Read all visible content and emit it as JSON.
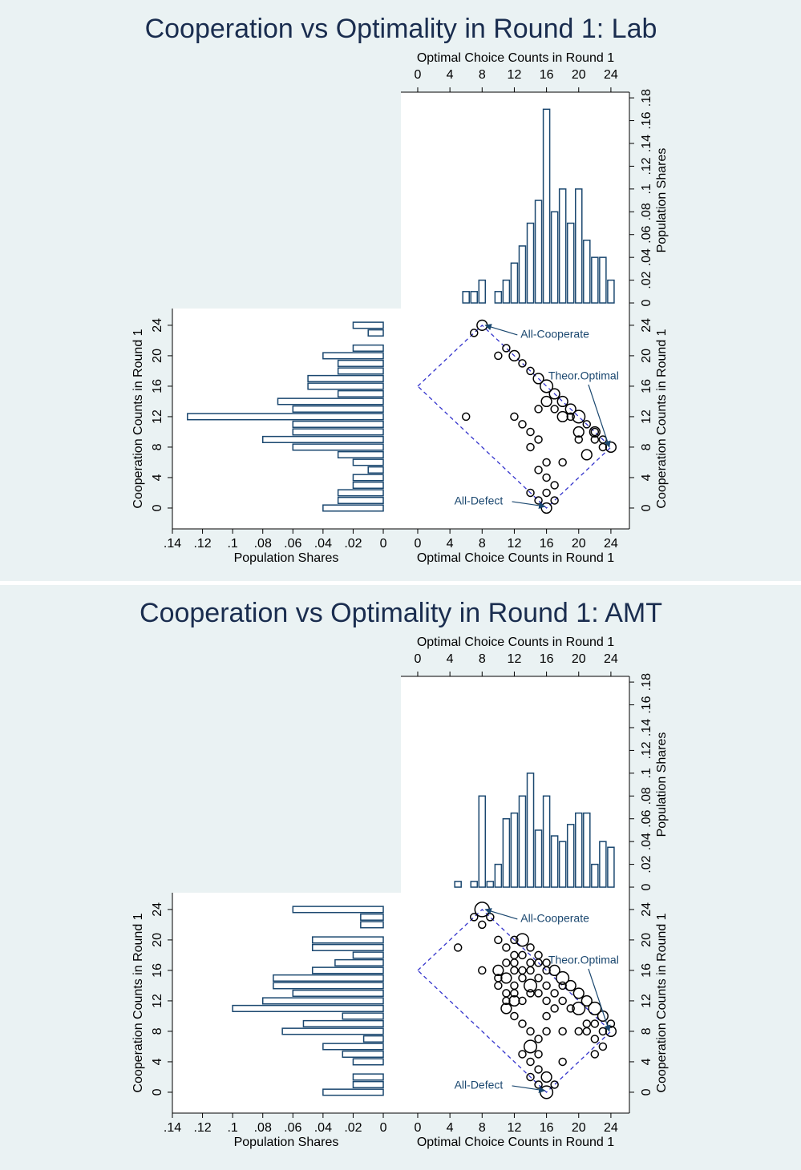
{
  "chart_data": [
    {
      "type": "marginal",
      "title": "Cooperation vs Optimality in Round 1: Lab",
      "xlabel": "Optimal Choice Counts in Round 1",
      "ylabel": "Cooperation Counts in Round 1",
      "share_label": "Population Shares",
      "xlim": [
        -2.09,
        26.3
      ],
      "xticks": [
        0,
        4,
        8,
        12,
        16,
        20,
        24
      ],
      "ylim": [
        -2.74,
        26.2
      ],
      "yticks": [
        0,
        4,
        8,
        12,
        16,
        20,
        24
      ],
      "top_histogram": {
        "color": "#1a476f",
        "x": [
          6,
          7,
          8,
          10,
          11,
          12,
          13,
          14,
          15,
          16,
          17,
          18,
          19,
          20,
          21,
          22,
          23,
          24
        ],
        "values": [
          0.01,
          0.01,
          0.02,
          0.01,
          0.02,
          0.035,
          0.05,
          0.07,
          0.09,
          0.17,
          0.08,
          0.1,
          0.07,
          0.1,
          0.055,
          0.04,
          0.04,
          0.02
        ],
        "ylim": [
          -0.0049,
          0.185
        ],
        "yticks": [
          0,
          {
            "value": 0.02,
            "label": ".02"
          },
          {
            "value": 0.04,
            "label": ".04"
          },
          {
            "value": 0.06,
            "label": ".06"
          },
          {
            "value": 0.08,
            "label": ".08"
          },
          {
            "value": 0.1,
            "label": ".1"
          },
          {
            "value": 0.12,
            "label": ".12"
          },
          {
            "value": 0.14,
            "label": ".14"
          },
          {
            "value": 0.16,
            "label": ".16"
          },
          {
            "value": 0.18,
            "label": ".18"
          }
        ]
      },
      "left_histogram": {
        "color": "#1a476f",
        "y": [
          24,
          23,
          21,
          20,
          19,
          18,
          17,
          16,
          15,
          14,
          13,
          12,
          11,
          10,
          9,
          8,
          7,
          6,
          5,
          4,
          3,
          2,
          1,
          0
        ],
        "values": [
          0.02,
          0.01,
          0.02,
          0.04,
          0.03,
          0.03,
          0.05,
          0.05,
          0.03,
          0.07,
          0.06,
          0.13,
          0.06,
          0.06,
          0.08,
          0.06,
          0.03,
          0.02,
          0.01,
          0.02,
          0.02,
          0.03,
          0.03,
          0.04
        ],
        "xlim": [
          -0.0117,
          0.14
        ],
        "xticks": [
          0,
          {
            "value": 0.02,
            "label": ".02"
          },
          {
            "value": 0.04,
            "label": ".04"
          },
          {
            "value": 0.06,
            "label": ".06"
          },
          {
            "value": 0.08,
            "label": ".08"
          },
          {
            "value": 0.1,
            "label": ".1"
          },
          {
            "value": 0.12,
            "label": ".12"
          },
          {
            "value": 0.14,
            "label": ".14"
          }
        ]
      },
      "scatter": {
        "color": "#000000",
        "x": [
          8,
          7,
          10,
          11,
          12,
          13,
          14,
          15,
          16,
          17,
          18,
          19,
          20,
          21,
          22,
          23,
          24,
          16,
          15,
          17,
          18,
          19,
          12,
          6,
          13,
          14,
          15,
          14,
          20,
          21,
          22,
          23,
          18,
          16,
          15,
          16,
          17,
          14,
          16,
          15,
          16,
          17,
          20,
          22
        ],
        "y": [
          24,
          23,
          20,
          21,
          20,
          19,
          18,
          17,
          16,
          15,
          14,
          13,
          12,
          11,
          10,
          9,
          8,
          14,
          13,
          13,
          12,
          12,
          12,
          12,
          11,
          10,
          9,
          8,
          9,
          7,
          9,
          8,
          6,
          6,
          5,
          4,
          3,
          2,
          2,
          1,
          0,
          1,
          10,
          10
        ],
        "size": [
          2,
          1,
          1,
          1,
          2,
          1,
          1,
          2,
          3,
          2,
          2,
          2,
          3,
          1,
          2,
          1,
          2,
          2,
          1,
          1,
          2,
          1,
          1,
          1,
          1,
          1,
          1,
          1,
          1,
          2,
          1,
          1,
          1,
          1,
          1,
          1,
          1,
          1,
          1,
          1,
          2,
          1,
          2,
          1
        ]
      },
      "frontier": {
        "color": "#3333cc",
        "x": [
          0,
          8,
          24,
          16,
          0
        ],
        "y": [
          16,
          24,
          8,
          0,
          16
        ]
      },
      "annotations": [
        {
          "text": "All-Cooperate",
          "x": 8,
          "y": 24
        },
        {
          "text": "Theor.Optimal",
          "x": 24,
          "y": 8
        },
        {
          "text": "All-Defect",
          "x": 16,
          "y": 0
        }
      ]
    },
    {
      "type": "marginal",
      "title": "Cooperation vs Optimality in Round 1: AMT",
      "xlabel": "Optimal Choice Counts in Round 1",
      "ylabel": "Cooperation Counts in Round 1",
      "share_label": "Population Shares",
      "xlim": [
        -2.09,
        26.3
      ],
      "xticks": [
        0,
        4,
        8,
        12,
        16,
        20,
        24
      ],
      "ylim": [
        -2.74,
        26.2
      ],
      "yticks": [
        0,
        4,
        8,
        12,
        16,
        20,
        24
      ],
      "top_histogram": {
        "color": "#1a476f",
        "x": [
          5,
          7,
          8,
          9,
          10,
          11,
          12,
          13,
          14,
          15,
          16,
          17,
          18,
          19,
          20,
          21,
          22,
          23,
          24
        ],
        "values": [
          0.005,
          0.005,
          0.08,
          0.005,
          0.02,
          0.06,
          0.065,
          0.08,
          0.1,
          0.05,
          0.08,
          0.045,
          0.04,
          0.055,
          0.065,
          0.065,
          0.02,
          0.04,
          0.035
        ],
        "ylim": [
          -0.0049,
          0.185
        ],
        "yticks": [
          0,
          {
            "value": 0.02,
            "label": ".02"
          },
          {
            "value": 0.04,
            "label": ".04"
          },
          {
            "value": 0.06,
            "label": ".06"
          },
          {
            "value": 0.08,
            "label": ".08"
          },
          {
            "value": 0.1,
            "label": ".1"
          },
          {
            "value": 0.12,
            "label": ".12"
          },
          {
            "value": 0.14,
            "label": ".14"
          },
          {
            "value": 0.16,
            "label": ".16"
          },
          {
            "value": 0.18,
            "label": ".18"
          }
        ]
      },
      "left_histogram": {
        "color": "#1a476f",
        "y": [
          24,
          23,
          22,
          20,
          19,
          18,
          17,
          16,
          15,
          14,
          13,
          12,
          11,
          10,
          9,
          8,
          7,
          6,
          5,
          4,
          2,
          1,
          0
        ],
        "values": [
          0.06,
          0.015,
          0.015,
          0.047,
          0.047,
          0.02,
          0.032,
          0.047,
          0.073,
          0.073,
          0.06,
          0.08,
          0.1,
          0.027,
          0.053,
          0.067,
          0.013,
          0.04,
          0.027,
          0.02,
          0.02,
          0.02,
          0.04
        ],
        "xlim": [
          -0.0117,
          0.14
        ],
        "xticks": [
          0,
          {
            "value": 0.02,
            "label": ".02"
          },
          {
            "value": 0.04,
            "label": ".04"
          },
          {
            "value": 0.06,
            "label": ".06"
          },
          {
            "value": 0.08,
            "label": ".08"
          },
          {
            "value": 0.1,
            "label": ".1"
          },
          {
            "value": 0.12,
            "label": ".12"
          },
          {
            "value": 0.14,
            "label": ".14"
          }
        ]
      },
      "scatter": {
        "color": "#000000",
        "x": [
          8,
          7,
          9,
          8,
          5,
          10,
          11,
          12,
          13,
          14,
          15,
          16,
          17,
          18,
          19,
          20,
          21,
          22,
          23,
          24,
          24,
          23,
          22,
          21,
          8,
          10,
          11,
          12,
          10,
          11,
          12,
          13,
          14,
          15,
          16,
          10,
          11,
          12,
          13,
          15,
          16,
          17,
          18,
          19,
          20,
          11,
          12,
          11,
          12,
          13,
          14,
          16,
          18,
          20,
          21,
          22,
          23,
          22,
          15,
          14,
          13,
          15,
          14,
          18,
          15,
          14,
          16,
          16,
          17,
          15,
          13,
          14,
          16,
          17,
          18,
          15,
          14,
          13,
          12,
          12,
          14,
          16
        ],
        "y": [
          24,
          23,
          23,
          22,
          19,
          20,
          19,
          20,
          20,
          19,
          18,
          17,
          16,
          15,
          14,
          13,
          12,
          11,
          10,
          9,
          8,
          8,
          9,
          9,
          16,
          16,
          17,
          17,
          15,
          15,
          14,
          15,
          14,
          15,
          16,
          14,
          13,
          13,
          12,
          13,
          12,
          11,
          12,
          11,
          11,
          12,
          12,
          11,
          10,
          9,
          8,
          8,
          8,
          8,
          8,
          7,
          6,
          5,
          7,
          6,
          5,
          5,
          4,
          4,
          3,
          2,
          2,
          0,
          1,
          1,
          16,
          13,
          14,
          13,
          14,
          17,
          17,
          18,
          18,
          16,
          16,
          10
        ],
        "size": [
          4,
          1,
          1,
          1,
          1,
          1,
          1,
          1,
          3,
          1,
          1,
          1,
          2,
          3,
          2,
          2,
          2,
          3,
          2,
          1,
          2,
          1,
          1,
          1,
          1,
          2,
          1,
          1,
          1,
          2,
          1,
          1,
          3,
          1,
          1,
          1,
          1,
          1,
          1,
          1,
          1,
          1,
          1,
          1,
          3,
          1,
          2,
          2,
          1,
          1,
          1,
          1,
          1,
          1,
          1,
          1,
          1,
          1,
          1,
          3,
          1,
          1,
          1,
          1,
          1,
          1,
          2,
          3,
          1,
          1,
          1,
          1,
          1,
          1,
          1,
          1,
          1,
          1,
          1,
          1,
          1,
          1
        ]
      },
      "frontier": {
        "color": "#3333cc",
        "x": [
          0,
          8,
          24,
          16,
          0
        ],
        "y": [
          16,
          24,
          8,
          0,
          16
        ]
      },
      "annotations": [
        {
          "text": "All-Cooperate",
          "x": 8,
          "y": 24
        },
        {
          "text": "Theor.Optimal",
          "x": 24,
          "y": 8
        },
        {
          "text": "All-Defect",
          "x": 16,
          "y": 0
        }
      ]
    }
  ]
}
